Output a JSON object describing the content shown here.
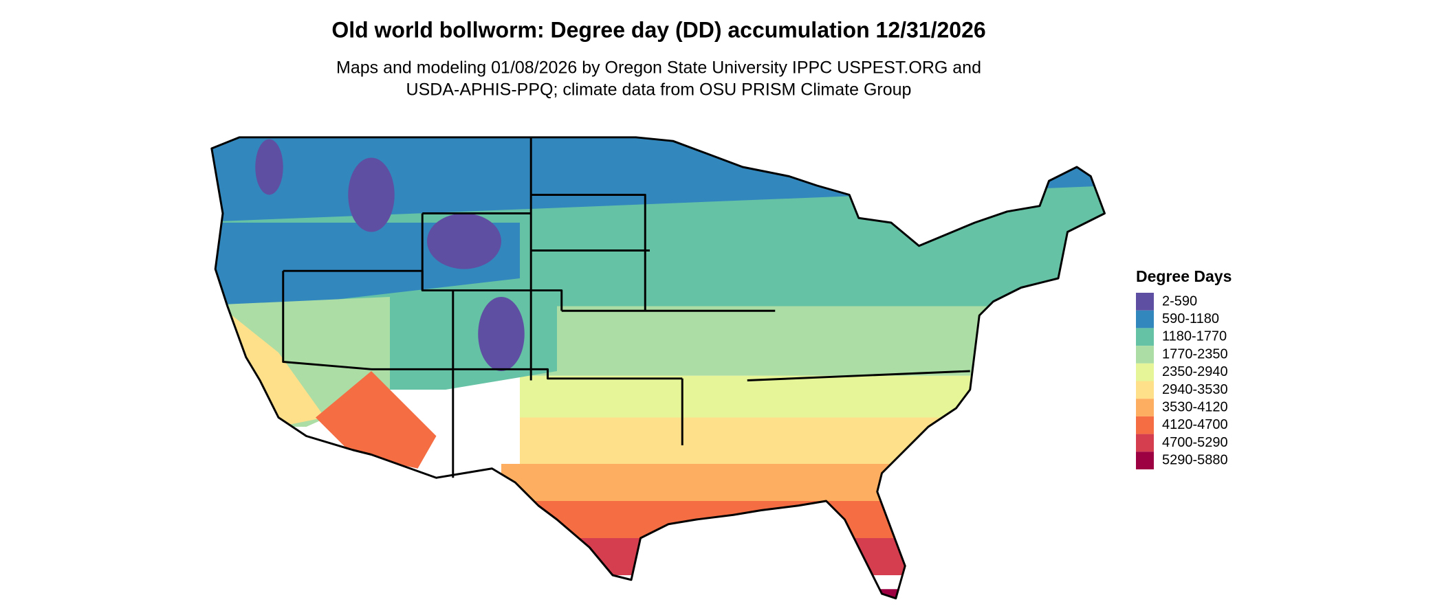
{
  "title": "Old world bollworm: Degree day (DD) accumulation 12/31/2026",
  "subtitle": [
    "Maps and modeling 01/08/2026 by Oregon State University IPPC USPEST.ORG and",
    "USDA-APHIS-PPQ; climate data from OSU PRISM Climate Group"
  ],
  "legend": {
    "title": "Degree Days",
    "items": [
      {
        "label": "2-590",
        "color": "#5e4fa2"
      },
      {
        "label": "590-1180",
        "color": "#3288bd"
      },
      {
        "label": "1180-1770",
        "color": "#66c2a5"
      },
      {
        "label": "1770-2350",
        "color": "#abdda4"
      },
      {
        "label": "2350-2940",
        "color": "#e6f598"
      },
      {
        "label": "2940-3530",
        "color": "#fee08b"
      },
      {
        "label": "3530-4120",
        "color": "#fdae61"
      },
      {
        "label": "4120-4700",
        "color": "#f46d43"
      },
      {
        "label": "4700-5290",
        "color": "#d53e4f"
      },
      {
        "label": "5290-5880",
        "color": "#9e0142"
      }
    ]
  }
}
